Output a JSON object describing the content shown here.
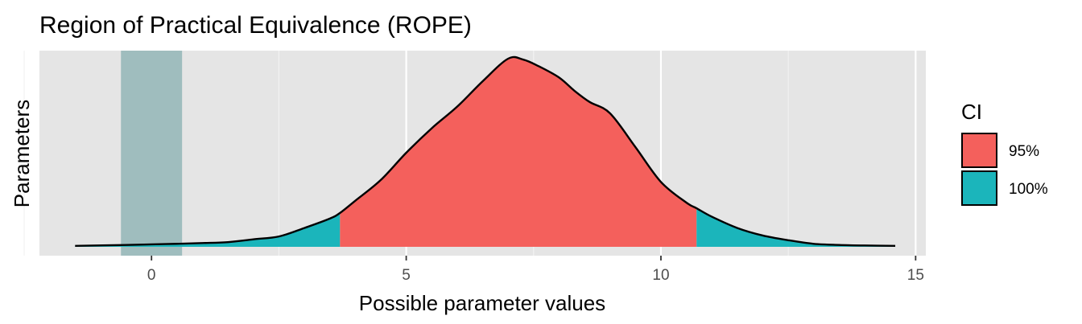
{
  "chart_data": {
    "type": "area",
    "title": "Region of Practical Equivalence (ROPE)",
    "xlabel": "Possible parameter values",
    "ylabel": "Parameters",
    "xlim": [
      -2.2,
      15.2
    ],
    "ylim": [
      0,
      1.08
    ],
    "x_ticks": [
      0,
      5,
      10,
      15
    ],
    "x_tick_labels": [
      "0",
      "5",
      "10",
      "15"
    ],
    "x_minor_ticks": [
      -2.5,
      2.5,
      7.5,
      12.5
    ],
    "grid": true,
    "rope": {
      "lower": -0.6,
      "upper": 0.6,
      "color": "#9FBDBE"
    },
    "ci_95": {
      "lower": 3.7,
      "upper": 10.7
    },
    "legend": {
      "title": "CI",
      "position": "right",
      "entries": [
        {
          "label": "95%",
          "color": "#F4605C"
        },
        {
          "label": "100%",
          "color": "#1BB5BB"
        }
      ]
    },
    "density": {
      "x": [
        -1.5,
        -0.5,
        0,
        0.5,
        1.0,
        1.5,
        2.0,
        2.5,
        3.0,
        3.5,
        3.7,
        4.0,
        4.5,
        5.0,
        5.5,
        6.0,
        6.5,
        7.0,
        7.3,
        7.6,
        8.0,
        8.3,
        8.6,
        9.0,
        9.5,
        10.0,
        10.5,
        10.7,
        11.0,
        11.5,
        12.0,
        12.5,
        13.0,
        13.5,
        14.0,
        14.6
      ],
      "y": [
        0.005,
        0.01,
        0.013,
        0.016,
        0.02,
        0.025,
        0.04,
        0.055,
        0.1,
        0.15,
        0.18,
        0.245,
        0.355,
        0.5,
        0.63,
        0.745,
        0.88,
        1.0,
        0.995,
        0.96,
        0.9,
        0.83,
        0.77,
        0.71,
        0.53,
        0.345,
        0.235,
        0.205,
        0.16,
        0.1,
        0.06,
        0.035,
        0.016,
        0.01,
        0.007,
        0.005
      ]
    }
  }
}
